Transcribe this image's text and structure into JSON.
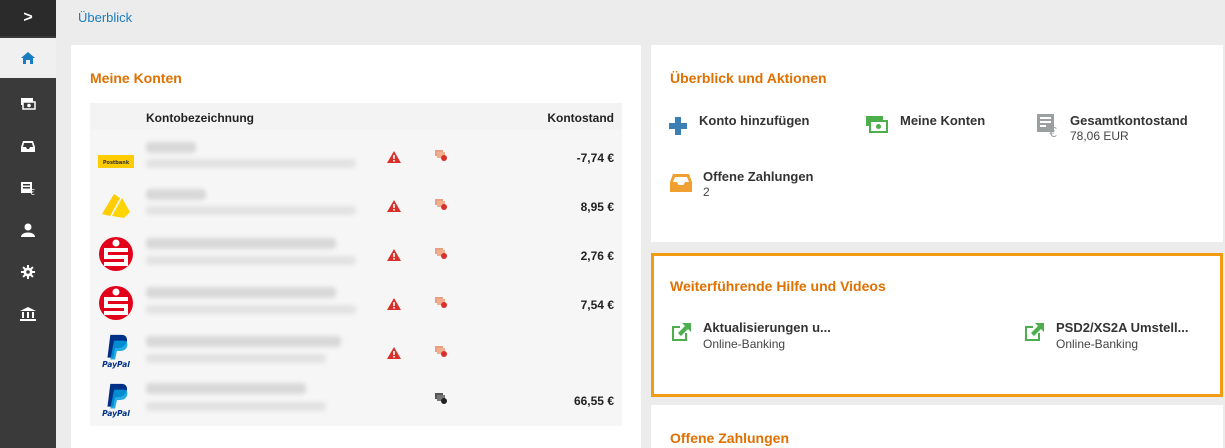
{
  "sidebar": {
    "toggle_glyph": ">",
    "items": [
      {
        "name": "home",
        "icon": "home-icon"
      },
      {
        "name": "accounts",
        "icon": "money-stack-icon"
      },
      {
        "name": "inbox",
        "icon": "inbox-icon"
      },
      {
        "name": "balance",
        "icon": "balance-icon"
      },
      {
        "name": "user",
        "icon": "user-icon"
      },
      {
        "name": "settings",
        "icon": "gear-icon"
      },
      {
        "name": "bank",
        "icon": "bank-icon"
      }
    ]
  },
  "breadcrumb": "Überblick",
  "accounts_panel": {
    "title": "Meine Konten",
    "col_name": "Kontobezeichnung",
    "col_balance": "Kontostand",
    "rows": [
      {
        "bank": "Postbank",
        "logo_text": "Postbank",
        "amount": "-7,74 €"
      },
      {
        "bank": "Commerzbank",
        "amount": "8,95 €"
      },
      {
        "bank": "Sparkasse",
        "amount": "2,76 €"
      },
      {
        "bank": "Sparkasse",
        "amount": "7,54 €"
      },
      {
        "bank": "PayPal",
        "logo_text": "PayPal",
        "amount": ""
      },
      {
        "bank": "PayPal",
        "logo_text": "PayPal",
        "amount": "66,55 €"
      }
    ]
  },
  "actions_panel": {
    "title": "Überblick und Aktionen",
    "add_account": "Konto hinzufügen",
    "my_accounts": "Meine Konten",
    "total_label": "Gesamtkontostand",
    "total_value": "78,06 EUR",
    "open_payments_label": "Offene Zahlungen",
    "open_payments_count": "2"
  },
  "help_panel": {
    "title": "Weiterführende Hilfe und Videos",
    "links": [
      {
        "title": "Aktualisierungen u...",
        "sub": "Online-Banking"
      },
      {
        "title": "PSD2/XS2A Umstell...",
        "sub": "Online-Banking"
      }
    ]
  },
  "payments_panel": {
    "title": "Offene Zahlungen"
  },
  "colors": {
    "accent": "#e07000",
    "link": "#1a7cc1",
    "highlight_border": "#f39c12",
    "warning": "#d9302c",
    "add_blue": "#3c7fb4",
    "green": "#4cae4c"
  }
}
